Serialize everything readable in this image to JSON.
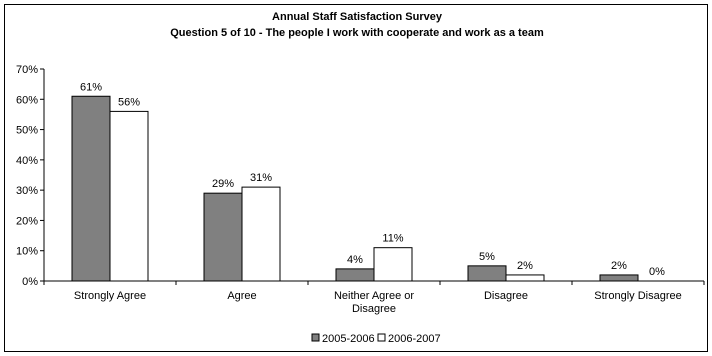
{
  "chart_data": {
    "type": "bar",
    "title": "Annual Staff Satisfaction Survey",
    "subtitle": "Question 5 of 10 - The people I work with cooperate and work as a team",
    "xlabel": "",
    "ylabel": "",
    "categories": [
      "Strongly Agree",
      "Agree",
      "Neither Agree or Disagree",
      "Disagree",
      "Strongly Disagree"
    ],
    "series": [
      {
        "name": "2005-2006",
        "color": "#808080",
        "values": [
          61,
          29,
          4,
          5,
          2
        ],
        "labels": [
          "61%",
          "29%",
          "4%",
          "5%",
          "2%"
        ]
      },
      {
        "name": "2006-2007",
        "color": "#ffffff",
        "values": [
          56,
          31,
          11,
          2,
          0
        ],
        "labels": [
          "56%",
          "31%",
          "11%",
          "2%",
          "0%"
        ]
      }
    ],
    "ylim": [
      0,
      70
    ],
    "yticks": [
      0,
      10,
      20,
      30,
      40,
      50,
      60,
      70
    ],
    "ytick_labels": [
      "0%",
      "10%",
      "20%",
      "30%",
      "40%",
      "50%",
      "60%",
      "70%"
    ],
    "grid": false,
    "legend": "bottom-center"
  }
}
